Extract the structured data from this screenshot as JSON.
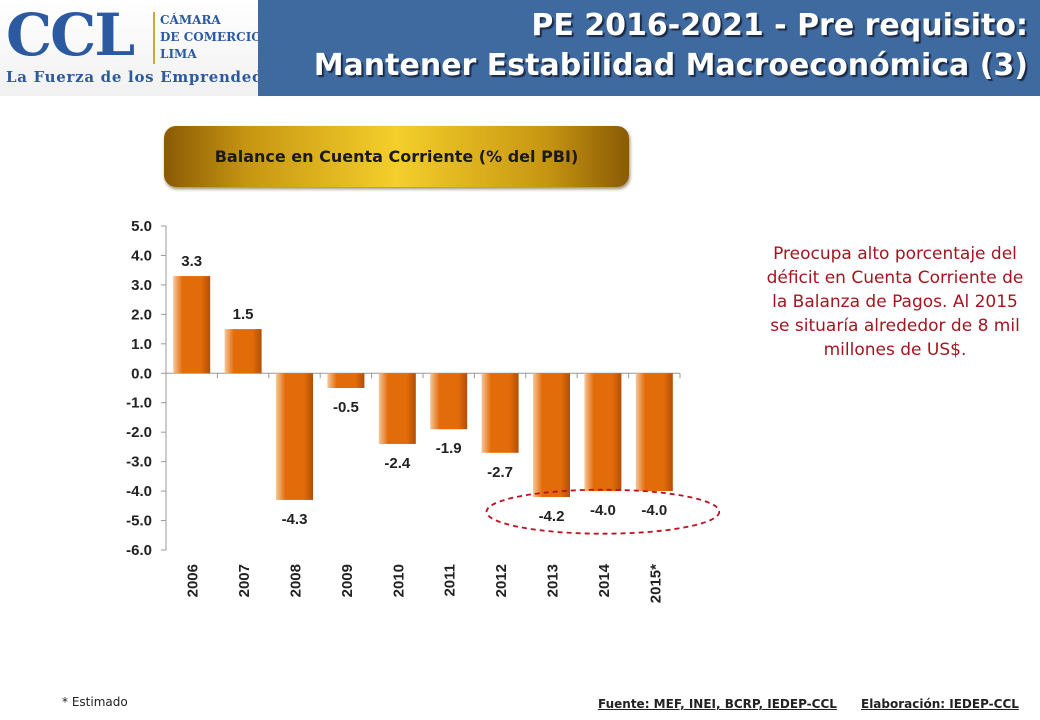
{
  "logo": {
    "mark": "CCL",
    "side_lines": [
      "CÁMARA",
      "DE COMERCIO",
      "LIMA"
    ],
    "tagline": "La Fuerza de los Emprendedores"
  },
  "title": {
    "line1": "PE 2016-2021 - Pre requisito:",
    "line2": "Mantener Estabilidad Macroeconómica (3)"
  },
  "chart_banner": "Balance en Cuenta Corriente (% del PBI)",
  "chart_data": {
    "type": "bar",
    "title": "Balance en Cuenta Corriente (% del PBI)",
    "categories": [
      "2006",
      "2007",
      "2008",
      "2009",
      "2010",
      "2011",
      "2012",
      "2013",
      "2014",
      "2015*"
    ],
    "values": [
      3.3,
      1.5,
      -4.3,
      -0.5,
      -2.4,
      -1.9,
      -2.7,
      -4.2,
      -4.0,
      -4.0
    ],
    "data_labels": [
      "3.3",
      "1.5",
      "-4.3",
      "-0.5",
      "-2.4",
      "-1.9",
      "-2.7",
      "-4.2",
      "-4.0",
      "-4.0"
    ],
    "yticks": [
      "5.0",
      "4.0",
      "3.0",
      "2.0",
      "1.0",
      "0.0",
      "-1.0",
      "-2.0",
      "-3.0",
      "-4.0",
      "-5.0",
      "-6.0"
    ],
    "ylim": [
      -6,
      5
    ],
    "xlabel": "",
    "ylabel": "",
    "grid": false,
    "bar_color": "#e36c0a",
    "highlight_color": "#c0101c",
    "highlighted_categories": [
      "2013",
      "2014",
      "2015*"
    ]
  },
  "note": "Preocupa alto porcentaje del déficit en Cuenta Corriente de la Balanza de Pagos. Al 2015 se situaría alrededor de 8 mil millones de US$.",
  "footnote": "* Estimado",
  "source": "Fuente: MEF, INEI, BCRP, IEDEP-CCL",
  "elaboration": "Elaboración: IEDEP-CCL"
}
